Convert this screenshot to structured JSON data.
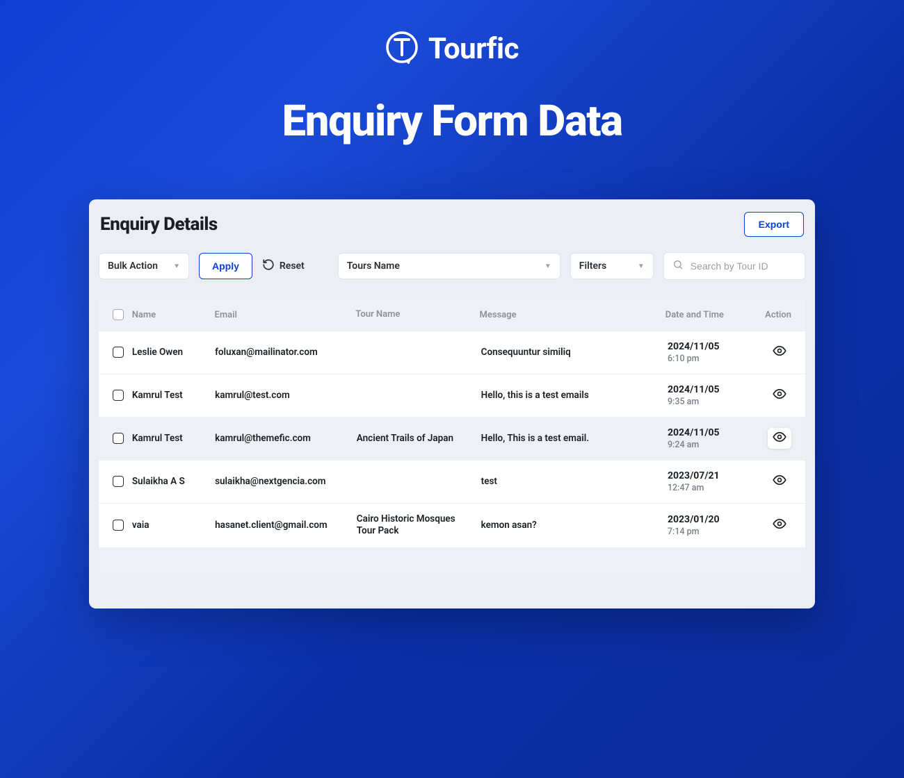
{
  "colors": {
    "accent": "#0a3fd9",
    "text_dark": "#1a1f24",
    "text_muted": "#8b919b",
    "panel_bg": "#ebeef2",
    "row_hover": "#eef0f5"
  },
  "brand": {
    "name": "Tourfic"
  },
  "hero": {
    "title": "Enquiry Form Data"
  },
  "panel": {
    "title": "Enquiry Details",
    "export_label": "Export"
  },
  "toolbar": {
    "bulk_action_label": "Bulk Action",
    "apply_label": "Apply",
    "reset_label": "Reset",
    "tours_name_label": "Tours Name",
    "filters_label": "Filters",
    "search_placeholder": "Search by Tour ID"
  },
  "table": {
    "columns": {
      "name": "Name",
      "email": "Email",
      "tour_name": "Tour Name",
      "message": "Message",
      "date_time": "Date and Time",
      "action": "Action"
    },
    "rows": [
      {
        "name": "Leslie Owen",
        "email": "foluxan@mailinator.com",
        "tour_name": "",
        "message": "Consequuntur similiq",
        "date": "2024/11/05",
        "time": "6:10 pm",
        "hovered": false
      },
      {
        "name": "Kamrul Test",
        "email": "kamrul@test.com",
        "tour_name": "",
        "message": "Hello, this is a test emails",
        "date": "2024/11/05",
        "time": "9:35 am",
        "hovered": false
      },
      {
        "name": "Kamrul Test",
        "email": "kamrul@themefic.com",
        "tour_name": "Ancient Trails of Japan",
        "message": "Hello, This is a test email.",
        "date": "2024/11/05",
        "time": "9:24 am",
        "hovered": true
      },
      {
        "name": "Sulaikha A S",
        "email": "sulaikha@nextgencia.com",
        "tour_name": "",
        "message": "test",
        "date": "2023/07/21",
        "time": "12:47 am",
        "hovered": false
      },
      {
        "name": "vaia",
        "email": "hasanet.client@gmail.com",
        "tour_name": "Cairo Historic Mosques Tour Pack",
        "message": "kemon asan?",
        "date": "2023/01/20",
        "time": "7:14 pm",
        "hovered": false
      }
    ]
  }
}
